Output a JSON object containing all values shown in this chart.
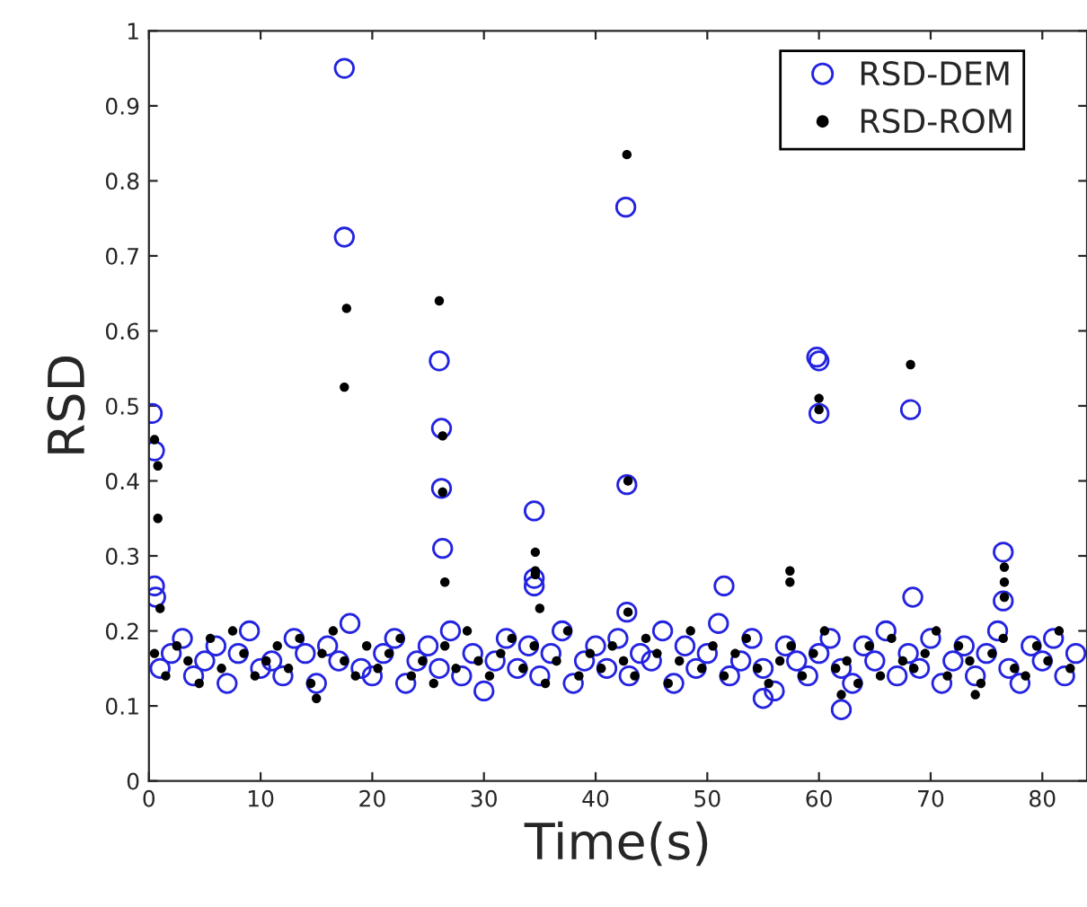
{
  "chart_data": {
    "type": "scatter",
    "xlabel": "Time(s)",
    "ylabel": "RSD",
    "xlim": [
      0,
      84
    ],
    "xticks": [
      0,
      10,
      20,
      30,
      40,
      50,
      60,
      70,
      80
    ],
    "ylim": [
      0,
      1
    ],
    "yticks": [
      0,
      0.1,
      0.2,
      0.3,
      0.4,
      0.5,
      0.6,
      0.7,
      0.8,
      0.9,
      1
    ],
    "grid": false,
    "legend": "top right",
    "marker": "circle",
    "series": [
      {
        "name": "RSD-DEM",
        "color": "#2323e0",
        "x": [
          1,
          2,
          3,
          4,
          5,
          6,
          7,
          8,
          9,
          10,
          11,
          12,
          13,
          14,
          15,
          16,
          17,
          18,
          19,
          20,
          21,
          22,
          23,
          24,
          25,
          26,
          27,
          28,
          29,
          30,
          31,
          32,
          33,
          34,
          35,
          36,
          37,
          38,
          39,
          40,
          41,
          42,
          43,
          44,
          45,
          46,
          47,
          48,
          49,
          50,
          51,
          52,
          53,
          54,
          55,
          56,
          57,
          58,
          59,
          60,
          61,
          62,
          63,
          64,
          65,
          66,
          67,
          68,
          69,
          70,
          71,
          72,
          73,
          74,
          75,
          76,
          77,
          78,
          79,
          80,
          81,
          82,
          83,
          0.3,
          0.5,
          0.5,
          0.6,
          17.5,
          17.5,
          26,
          26.2,
          26.2,
          26.3,
          34.5,
          34.5,
          34.5,
          42.7,
          42.8,
          42.8,
          51.5,
          59.8,
          60,
          60,
          68.2,
          68.4,
          76.5,
          76.5,
          55,
          62
        ],
        "values": [
          0.15,
          0.17,
          0.19,
          0.14,
          0.16,
          0.18,
          0.13,
          0.17,
          0.2,
          0.15,
          0.16,
          0.14,
          0.19,
          0.17,
          0.13,
          0.18,
          0.16,
          0.21,
          0.15,
          0.14,
          0.17,
          0.19,
          0.13,
          0.16,
          0.18,
          0.15,
          0.2,
          0.14,
          0.17,
          0.12,
          0.16,
          0.19,
          0.15,
          0.18,
          0.14,
          0.17,
          0.2,
          0.13,
          0.16,
          0.18,
          0.15,
          0.19,
          0.14,
          0.17,
          0.16,
          0.2,
          0.13,
          0.18,
          0.15,
          0.17,
          0.21,
          0.14,
          0.16,
          0.19,
          0.15,
          0.12,
          0.18,
          0.16,
          0.14,
          0.17,
          0.19,
          0.15,
          0.13,
          0.18,
          0.16,
          0.2,
          0.14,
          0.17,
          0.15,
          0.19,
          0.13,
          0.16,
          0.18,
          0.14,
          0.17,
          0.2,
          0.15,
          0.13,
          0.18,
          0.16,
          0.19,
          0.14,
          0.17,
          0.49,
          0.44,
          0.26,
          0.245,
          0.95,
          0.725,
          0.56,
          0.47,
          0.39,
          0.31,
          0.36,
          0.27,
          0.26,
          0.765,
          0.395,
          0.225,
          0.26,
          0.565,
          0.56,
          0.49,
          0.495,
          0.245,
          0.305,
          0.24,
          0.11,
          0.095
        ]
      },
      {
        "name": "RSD-ROM",
        "color": "#000000",
        "x": [
          0.5,
          1.5,
          2.5,
          3.5,
          4.5,
          5.5,
          6.5,
          7.5,
          8.5,
          9.5,
          10.5,
          11.5,
          12.5,
          13.5,
          14.5,
          15.5,
          16.5,
          17.5,
          18.5,
          19.5,
          20.5,
          21.5,
          22.5,
          23.5,
          24.5,
          25.5,
          26.5,
          27.5,
          28.5,
          29.5,
          30.5,
          31.5,
          32.5,
          33.5,
          34.5,
          35.5,
          36.5,
          37.5,
          38.5,
          39.5,
          40.5,
          41.5,
          42.5,
          43.5,
          44.5,
          45.5,
          46.5,
          47.5,
          48.5,
          49.5,
          50.5,
          51.5,
          52.5,
          53.5,
          54.5,
          55.5,
          56.5,
          57.5,
          58.5,
          59.5,
          60.5,
          61.5,
          62.5,
          63.5,
          64.5,
          65.5,
          66.5,
          67.5,
          68.5,
          69.5,
          70.5,
          71.5,
          72.5,
          73.5,
          74.5,
          75.5,
          76.5,
          77.5,
          78.5,
          79.5,
          80.5,
          81.5,
          82.5,
          0.5,
          0.8,
          0.8,
          1,
          17.7,
          17.5,
          26,
          26.3,
          26.3,
          26.5,
          34.6,
          34.6,
          34.6,
          35,
          42.8,
          42.9,
          42.9,
          57.4,
          57.4,
          60,
          60,
          68.2,
          76.6,
          76.6,
          76.6,
          15,
          74,
          62
        ],
        "values": [
          0.17,
          0.14,
          0.18,
          0.16,
          0.13,
          0.19,
          0.15,
          0.2,
          0.17,
          0.14,
          0.16,
          0.18,
          0.15,
          0.19,
          0.13,
          0.17,
          0.2,
          0.16,
          0.14,
          0.18,
          0.15,
          0.17,
          0.19,
          0.14,
          0.16,
          0.13,
          0.18,
          0.15,
          0.2,
          0.16,
          0.14,
          0.17,
          0.19,
          0.15,
          0.18,
          0.13,
          0.16,
          0.2,
          0.14,
          0.17,
          0.15,
          0.18,
          0.16,
          0.14,
          0.19,
          0.17,
          0.13,
          0.16,
          0.2,
          0.15,
          0.18,
          0.14,
          0.17,
          0.19,
          0.15,
          0.13,
          0.16,
          0.18,
          0.14,
          0.17,
          0.2,
          0.15,
          0.16,
          0.13,
          0.18,
          0.14,
          0.19,
          0.16,
          0.15,
          0.17,
          0.2,
          0.14,
          0.18,
          0.16,
          0.13,
          0.17,
          0.19,
          0.15,
          0.14,
          0.18,
          0.16,
          0.2,
          0.15,
          0.455,
          0.42,
          0.35,
          0.23,
          0.63,
          0.525,
          0.64,
          0.46,
          0.385,
          0.265,
          0.305,
          0.28,
          0.275,
          0.23,
          0.835,
          0.4,
          0.225,
          0.28,
          0.265,
          0.51,
          0.495,
          0.555,
          0.285,
          0.265,
          0.245,
          0.11,
          0.115,
          0.115
        ]
      }
    ]
  }
}
